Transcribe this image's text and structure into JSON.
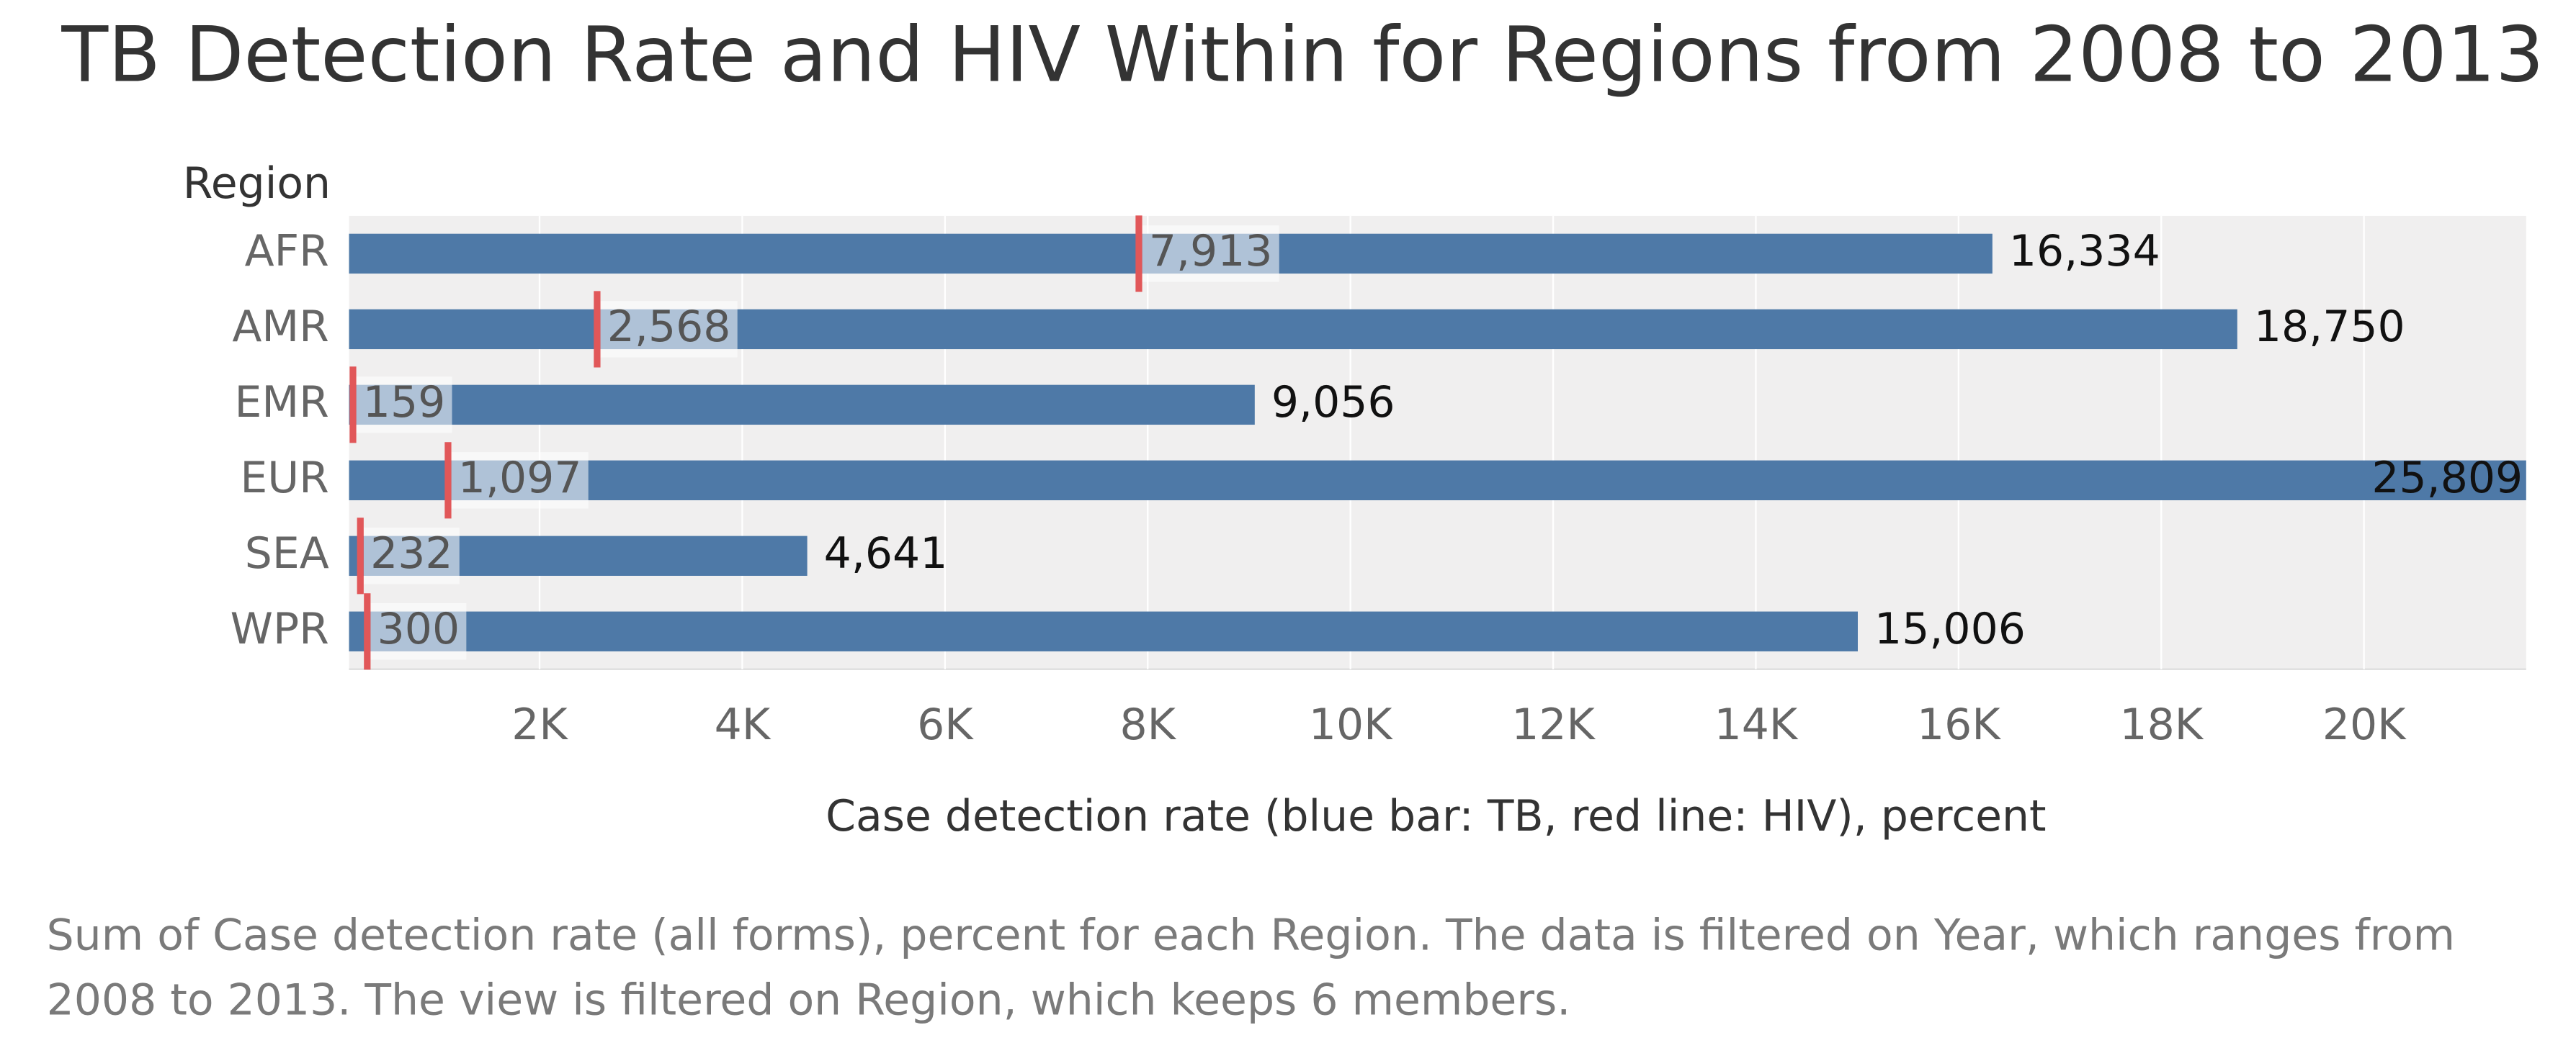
{
  "chart_data": {
    "type": "bullet",
    "title": "TB Detection Rate and HIV Within for Regions from 2008 to 2013",
    "row_header": "Region",
    "x_label": "Case detection rate (blue bar: TB, red line: HIV), percent",
    "caption": "Sum of Case detection rate (all forms), percent for each Region. The data is filtered on Year, which ranges from 2008 to 2013. The view is filtered on Region, which keeps 6 members.",
    "categories": [
      "AFR",
      "AMR",
      "EMR",
      "EUR",
      "SEA",
      "WPR"
    ],
    "series": [
      {
        "name": "TB",
        "color": "#4e79a7",
        "values": [
          16334,
          18750,
          9056,
          25809,
          4641,
          15006
        ],
        "value_labels": [
          "16,334",
          "18,750",
          "9,056",
          "25,809",
          "4,641",
          "15,006"
        ]
      },
      {
        "name": "HIV",
        "color": "#e15759",
        "values": [
          7913,
          2568,
          159,
          1097,
          232,
          300
        ],
        "value_labels": [
          "7,913",
          "2,568",
          "159",
          "1,097",
          "232",
          "300"
        ]
      }
    ],
    "xlim": [
      120,
      21600
    ],
    "xticks": [
      {
        "value": 2000,
        "label": "2K"
      },
      {
        "value": 4000,
        "label": "4K"
      },
      {
        "value": 6000,
        "label": "6K"
      },
      {
        "value": 8000,
        "label": "8K"
      },
      {
        "value": 10000,
        "label": "10K"
      },
      {
        "value": 12000,
        "label": "12K"
      },
      {
        "value": 14000,
        "label": "14K"
      },
      {
        "value": 16000,
        "label": "16K"
      },
      {
        "value": 18000,
        "label": "18K"
      },
      {
        "value": 20000,
        "label": "20K"
      }
    ],
    "grid": true
  }
}
